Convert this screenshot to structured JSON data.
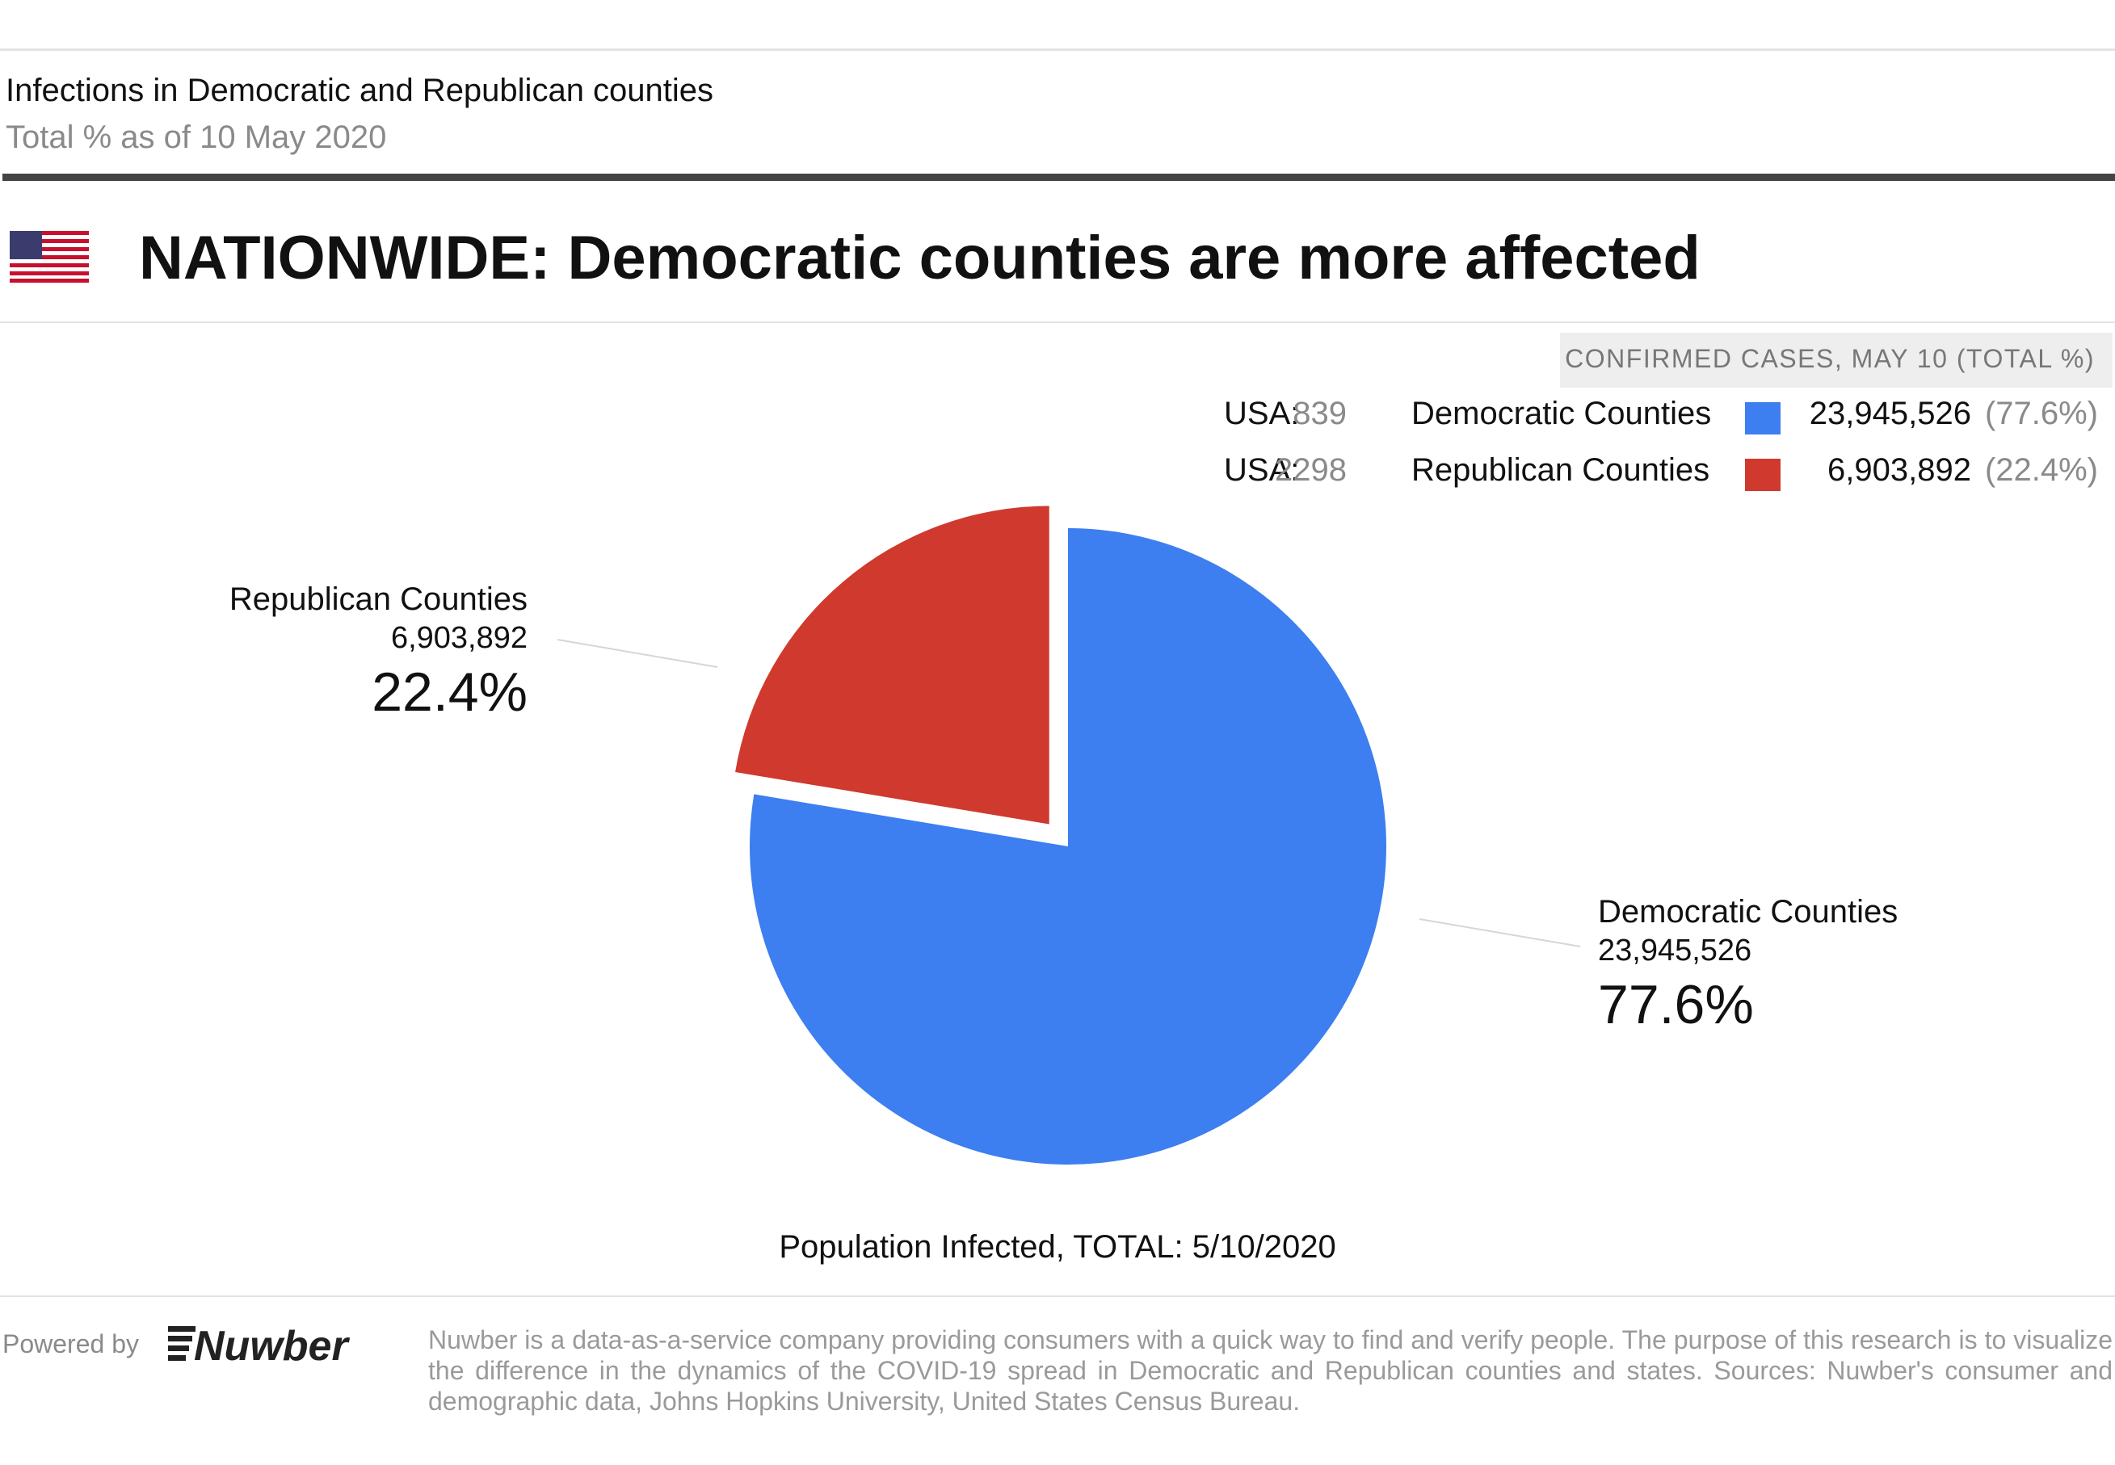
{
  "header": {
    "title": "Infections in Democratic and Republican counties",
    "subtitle": "Total % as of 10 May 2020"
  },
  "section": {
    "flag_icon": "us-flag-icon",
    "heading": "NATIONWIDE: Democratic counties are more affected"
  },
  "legend": {
    "caption": "CONFIRMED CASES, MAY 10 (TOTAL %)",
    "rows": [
      {
        "prefix": "USA:",
        "count": "839",
        "name": "Democratic Counties",
        "color": "#3d7ef0",
        "value": "23,945,526",
        "pct": "(77.6%)"
      },
      {
        "prefix": "USA:",
        "count": "2298",
        "name": "Republican Counties",
        "color": "#d0392d",
        "value": "6,903,892",
        "pct": "(22.4%)"
      }
    ]
  },
  "chart_data": {
    "type": "pie",
    "caption": "Population Infected, TOTAL:  5/10/2020",
    "slices": [
      {
        "label": "Democratic Counties",
        "value": 23945526,
        "value_text": "23,945,526",
        "percent": 77.6,
        "percent_text": "77.6%",
        "color": "#3d7ef0",
        "exploded": false
      },
      {
        "label": "Republican Counties",
        "value": 6903892,
        "value_text": "6,903,892",
        "percent": 22.4,
        "percent_text": "22.4%",
        "color": "#d0392d",
        "exploded": true
      }
    ]
  },
  "footer": {
    "powered_by": "Powered by",
    "brand": "Nuwber",
    "brand_icon": "nuwber-logo-icon",
    "text": "Nuwber is a data-as-a-service company providing consumers with a quick way to find and verify people. The purpose of this research is to visualize the difference in the dynamics of the COVID-19 spread in Democratic and Republican counties and states. Sources: Nuwber's consumer and demographic data, Johns Hopkins University, United States Census Bureau."
  }
}
